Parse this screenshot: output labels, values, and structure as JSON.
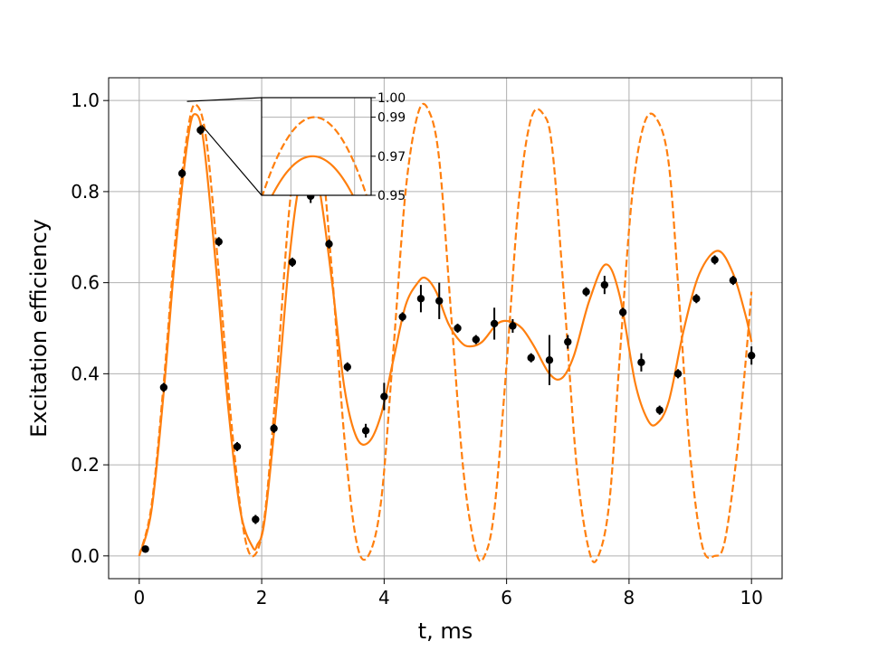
{
  "chart_data": {
    "type": "line",
    "title": "",
    "xlabel": "t, ms",
    "ylabel": "Excitation efficiency",
    "xlim": [
      -0.5,
      10.5
    ],
    "ylim": [
      -0.05,
      1.05
    ],
    "xticks": [
      "0",
      "2",
      "4",
      "6",
      "8",
      "10"
    ],
    "yticks": [
      "0.0",
      "0.2",
      "0.4",
      "0.6",
      "0.8",
      "1.0"
    ],
    "grid": true,
    "colors": {
      "curve": "#ff7f0e",
      "points": "#000000",
      "grid": "#b0b0b0"
    },
    "series": [
      {
        "style": "dashed",
        "x": [
          0.0,
          0.2,
          0.4,
          0.6,
          0.8,
          0.935,
          1.1,
          1.3,
          1.5,
          1.7,
          1.87,
          2.05,
          2.25,
          2.45,
          2.65,
          2.8,
          2.95,
          3.15,
          3.35,
          3.55,
          3.74,
          3.95,
          4.15,
          4.35,
          4.55,
          4.72,
          4.9,
          5.1,
          5.3,
          5.5,
          5.64,
          5.8,
          6.0,
          6.2,
          6.4,
          6.6,
          6.75,
          6.95,
          7.15,
          7.35,
          7.5,
          7.68,
          7.85,
          8.05,
          8.25,
          8.45,
          8.65,
          8.82,
          9.0,
          9.2,
          9.4,
          9.56,
          9.75,
          9.9,
          10.0
        ],
        "y": [
          0.0,
          0.11,
          0.38,
          0.71,
          0.94,
          0.99,
          0.91,
          0.62,
          0.3,
          0.06,
          0.0,
          0.09,
          0.4,
          0.76,
          0.96,
          0.985,
          0.92,
          0.62,
          0.26,
          0.03,
          0.0,
          0.12,
          0.45,
          0.8,
          0.97,
          0.98,
          0.87,
          0.52,
          0.18,
          0.01,
          0.0,
          0.1,
          0.42,
          0.78,
          0.96,
          0.97,
          0.89,
          0.55,
          0.19,
          0.01,
          0.0,
          0.12,
          0.44,
          0.79,
          0.95,
          0.96,
          0.86,
          0.56,
          0.22,
          0.02,
          0.0,
          0.03,
          0.21,
          0.42,
          0.58
        ]
      },
      {
        "style": "solid",
        "x": [
          0.0,
          0.2,
          0.4,
          0.6,
          0.8,
          0.92,
          1.05,
          1.25,
          1.45,
          1.65,
          1.85,
          1.93,
          2.05,
          2.25,
          2.45,
          2.62,
          2.8,
          2.95,
          3.15,
          3.35,
          3.55,
          3.75,
          3.95,
          4.15,
          4.35,
          4.55,
          4.68,
          4.85,
          5.05,
          5.25,
          5.4,
          5.6,
          5.85,
          6.05,
          6.25,
          6.45,
          6.7,
          6.9,
          7.1,
          7.35,
          7.62,
          7.85,
          8.1,
          8.3,
          8.45,
          8.65,
          8.9,
          9.15,
          9.45,
          9.7,
          9.9,
          10.0
        ],
        "y": [
          0.0,
          0.1,
          0.36,
          0.68,
          0.92,
          0.97,
          0.91,
          0.64,
          0.33,
          0.1,
          0.02,
          0.025,
          0.08,
          0.34,
          0.65,
          0.82,
          0.85,
          0.8,
          0.6,
          0.37,
          0.26,
          0.25,
          0.31,
          0.43,
          0.55,
          0.6,
          0.61,
          0.58,
          0.51,
          0.47,
          0.46,
          0.47,
          0.51,
          0.515,
          0.5,
          0.46,
          0.4,
          0.39,
          0.44,
          0.56,
          0.64,
          0.57,
          0.38,
          0.3,
          0.29,
          0.34,
          0.5,
          0.62,
          0.67,
          0.62,
          0.53,
          0.47
        ]
      },
      {
        "style": "points",
        "x": [
          0.1,
          0.4,
          0.7,
          1.0,
          1.3,
          1.6,
          1.9,
          2.2,
          2.5,
          2.8,
          3.1,
          3.4,
          3.7,
          4.0,
          4.3,
          4.6,
          4.9,
          5.2,
          5.5,
          5.8,
          6.1,
          6.4,
          6.7,
          7.0,
          7.3,
          7.6,
          7.9,
          8.2,
          8.5,
          8.8,
          9.1,
          9.4,
          9.7,
          10.0
        ],
        "y": [
          0.015,
          0.37,
          0.84,
          0.935,
          0.69,
          0.24,
          0.08,
          0.28,
          0.645,
          0.79,
          0.685,
          0.415,
          0.275,
          0.35,
          0.525,
          0.565,
          0.56,
          0.5,
          0.475,
          0.51,
          0.505,
          0.435,
          0.43,
          0.47,
          0.58,
          0.595,
          0.535,
          0.425,
          0.32,
          0.4,
          0.565,
          0.65,
          0.605,
          0.44
        ],
        "yerr": [
          0.005,
          0.01,
          0.01,
          0.01,
          0.01,
          0.01,
          0.01,
          0.01,
          0.01,
          0.015,
          0.01,
          0.01,
          0.015,
          0.03,
          0.01,
          0.03,
          0.04,
          0.01,
          0.01,
          0.035,
          0.015,
          0.01,
          0.055,
          0.015,
          0.01,
          0.02,
          0.01,
          0.02,
          0.01,
          0.01,
          0.01,
          0.01,
          0.01,
          0.02
        ]
      }
    ],
    "inset": {
      "xlim": [
        0.52,
        1.38
      ],
      "ylim": [
        0.95,
        1.0
      ],
      "yticks": [
        "0.95",
        "0.97",
        "0.99",
        "1.00"
      ],
      "grid": true
    }
  }
}
